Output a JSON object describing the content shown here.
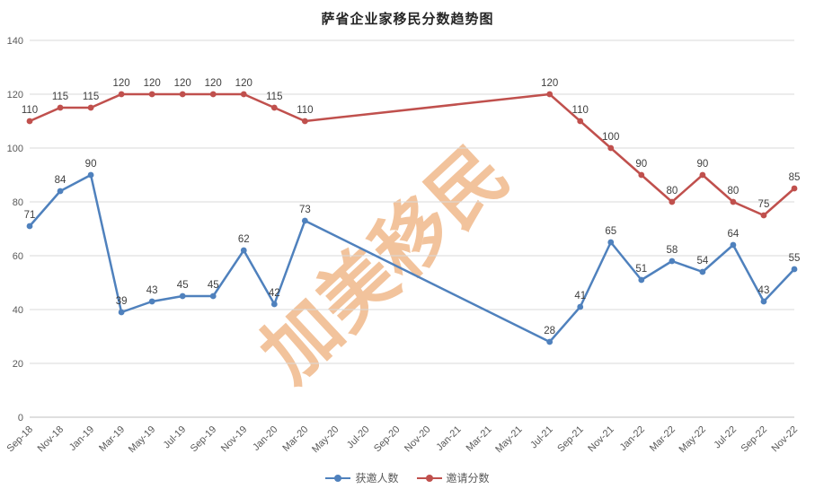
{
  "watermark": "加美移民",
  "chart_data": {
    "type": "line",
    "title": "萨省企业家移民分数趋势图",
    "categories": [
      "Sep-18",
      "Nov-18",
      "Jan-19",
      "Mar-19",
      "May-19",
      "Jul-19",
      "Sep-19",
      "Nov-19",
      "Jan-20",
      "Mar-20",
      "May-20",
      "Jul-20",
      "Sep-20",
      "Nov-20",
      "Jan-21",
      "Mar-21",
      "May-21",
      "Jul-21",
      "Sep-21",
      "Nov-21",
      "Jan-22",
      "Mar-22",
      "May-22",
      "Jul-22",
      "Sep-22",
      "Nov-22"
    ],
    "series": [
      {
        "name": "获邀人数",
        "color": "#4F81BD",
        "values": [
          71,
          84,
          90,
          39,
          43,
          45,
          45,
          62,
          42,
          73,
          null,
          null,
          null,
          null,
          null,
          null,
          null,
          28,
          41,
          65,
          51,
          58,
          54,
          64,
          43,
          55
        ]
      },
      {
        "name": "邀请分数",
        "color": "#C0504D",
        "values": [
          110,
          115,
          115,
          120,
          120,
          120,
          120,
          120,
          115,
          110,
          null,
          null,
          null,
          null,
          null,
          null,
          null,
          120,
          110,
          100,
          90,
          80,
          90,
          80,
          75,
          85
        ]
      }
    ],
    "ylim": [
      0,
      140
    ],
    "ytick_step": 20,
    "yticks": [
      0,
      20,
      40,
      60,
      80,
      100,
      120,
      140
    ],
    "xlabel": "",
    "ylabel": "",
    "grid": true,
    "legend_position": "bottom",
    "watermark_color": "#E8924A",
    "gridline_color": "#d9d9d9",
    "axis_text_color": "#595959",
    "data_label_color": "#3f3f3f"
  }
}
